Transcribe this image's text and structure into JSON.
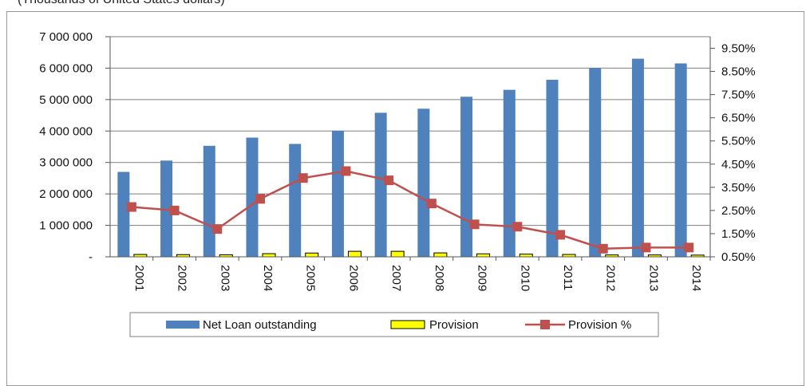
{
  "caption": "(Thousands of United States dollars)",
  "colors": {
    "loan": "#4f81bd",
    "provision": "#ffff00",
    "provision_pct": "#c0504d",
    "grid": "#7f7f7f"
  },
  "chart_data": {
    "type": "bar",
    "categories": [
      "2001",
      "2002",
      "2003",
      "2004",
      "2005",
      "2006",
      "2007",
      "2008",
      "2009",
      "2010",
      "2011",
      "2012",
      "2013",
      "2014"
    ],
    "series": [
      {
        "name": "Net Loan outstanding",
        "type": "bar",
        "axis": "left",
        "values": [
          2700000,
          3060000,
          3530000,
          3790000,
          3590000,
          4010000,
          4580000,
          4710000,
          5090000,
          5310000,
          5630000,
          6000000,
          6300000,
          6150000
        ]
      },
      {
        "name": "Provision",
        "type": "bar",
        "axis": "left",
        "values": [
          75000,
          70000,
          65000,
          100000,
          120000,
          175000,
          175000,
          125000,
          95000,
          85000,
          75000,
          60000,
          60000,
          55000
        ]
      },
      {
        "name": "Provision %",
        "type": "line",
        "axis": "right",
        "values": [
          2.65,
          2.5,
          1.7,
          3.0,
          3.9,
          4.2,
          3.8,
          2.8,
          1.9,
          1.8,
          1.45,
          0.85,
          0.9,
          0.9
        ]
      }
    ],
    "y_left": {
      "ylim": [
        0,
        7000000
      ],
      "tick_labels": [
        "-",
        "1 000 000",
        "2 000 000",
        "3 000 000",
        "4 000 000",
        "5 000 000",
        "6 000 000",
        "7 000 000"
      ]
    },
    "y_right": {
      "ylim": [
        0.5,
        10.0
      ],
      "tick_labels": [
        "0.50%",
        "1.50%",
        "2.50%",
        "3.50%",
        "4.50%",
        "5.50%",
        "6.50%",
        "7.50%",
        "8.50%",
        "9.50%"
      ]
    },
    "grid": true,
    "legend_position": "bottom"
  }
}
